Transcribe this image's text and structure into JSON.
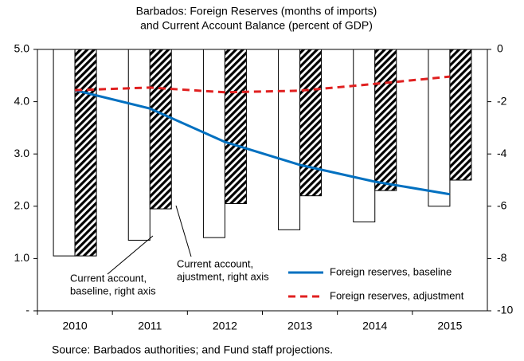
{
  "chart_data": {
    "type": "combo",
    "title": [
      "Barbados: Foreign Reserves (months of imports)",
      "and Current Account Balance (percent of GDP)"
    ],
    "source": "Source: Barbados authorities; and Fund staff projections.",
    "categories": [
      "2010",
      "2011",
      "2012",
      "2013",
      "2014",
      "2015"
    ],
    "ylim": [
      0,
      5
    ],
    "yticks": [
      {
        "value": 0,
        "label": "-"
      },
      {
        "value": 1,
        "label": "1.0"
      },
      {
        "value": 2,
        "label": "2.0"
      },
      {
        "value": 3,
        "label": "3.0"
      },
      {
        "value": 4,
        "label": "4.0"
      },
      {
        "value": 5,
        "label": "5.0"
      }
    ],
    "y2lim": [
      -10,
      0
    ],
    "y2ticks": [
      0,
      -2,
      -4,
      -6,
      -8,
      -10
    ],
    "legend": "lower right",
    "series": [
      {
        "name": "Current account, baseline, right axis",
        "type": "bar",
        "axis": "y2",
        "color": "#ffffff",
        "values": [
          -7.9,
          -7.3,
          -7.2,
          -6.9,
          -6.6,
          -6.0
        ]
      },
      {
        "name": "Current account, ajustment, right axis",
        "type": "bar",
        "axis": "y2",
        "color": "#000000",
        "hatch": true,
        "values": [
          -7.9,
          -6.1,
          -5.9,
          -5.6,
          -5.4,
          -5.0
        ]
      },
      {
        "name": "Foreign reserves, baseline",
        "type": "line",
        "color": "#0070c0",
        "values": [
          4.22,
          3.87,
          3.23,
          2.79,
          2.47,
          2.23
        ]
      },
      {
        "name": "Foreign reserves, adjustment",
        "type": "line",
        "color": "#e02020",
        "dashed": true,
        "values": [
          4.22,
          4.27,
          4.18,
          4.21,
          4.34,
          4.48
        ]
      }
    ],
    "annotations": [
      {
        "text": [
          "Current account,",
          "baseline, right axis"
        ]
      },
      {
        "text": [
          "Current account,",
          "ajustment, right axis"
        ]
      }
    ]
  }
}
